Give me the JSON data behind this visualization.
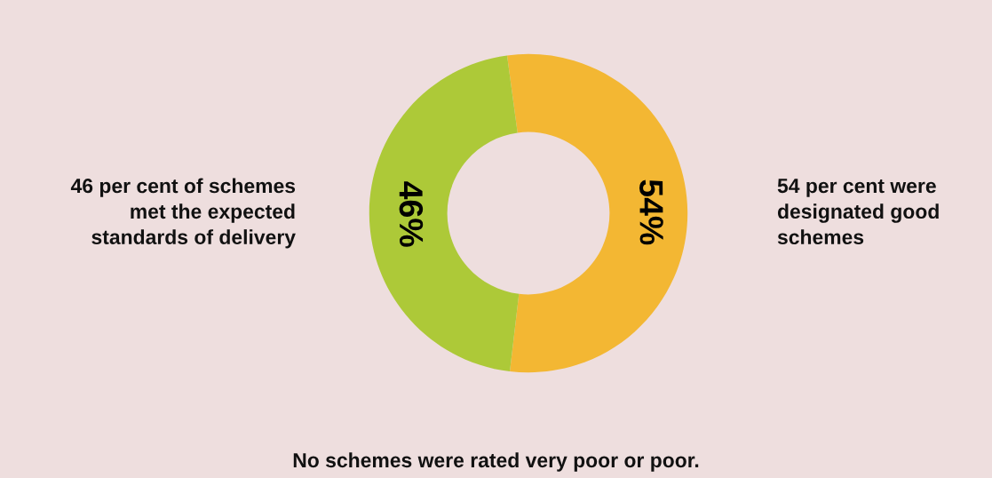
{
  "chart_data": {
    "type": "donut",
    "categories": [
      null,
      null
    ],
    "values": [
      54,
      46
    ],
    "colors": [
      "#f3b733",
      "#adc938"
    ],
    "value_labels": [
      "54%",
      "46%"
    ],
    "annotations": [
      "54 per cent were designated good schemes",
      "46 per cent of schemes met the expected standards of delivery",
      "No schemes were rated very poor or poor."
    ]
  }
}
